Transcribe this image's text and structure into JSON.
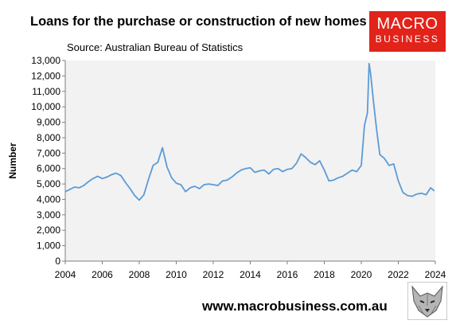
{
  "header": {
    "title": "Loans for the purchase or construction of new homes",
    "source": "Source: Australian Bureau of Statistics"
  },
  "logo": {
    "line1": "MACRO",
    "line2": "BUSINESS",
    "color": "#e2231a",
    "icon": "macrobusiness-logo"
  },
  "footer": {
    "url": "www.macrobusiness.com.au",
    "icon": "wolf-mascot-icon"
  },
  "chart_data": {
    "type": "line",
    "title": "Loans for the purchase or construction of new homes",
    "xlabel": "",
    "ylabel": "Number",
    "xlim": [
      2004,
      2024
    ],
    "ylim": [
      0,
      13000
    ],
    "x_ticks": [
      "2004",
      "2006",
      "2008",
      "2010",
      "2012",
      "2014",
      "2016",
      "2018",
      "2020",
      "2022",
      "2024"
    ],
    "y_ticks": [
      "0",
      "1,000",
      "2,000",
      "3,000",
      "4,000",
      "5,000",
      "6,000",
      "7,000",
      "8,000",
      "9,000",
      "10,000",
      "11,000",
      "12,000",
      "13,000"
    ],
    "grid": false,
    "line_color": "#5b9bd5",
    "plot_background": "#f2f2f2",
    "series": [
      {
        "x": [
          2004.0,
          2004.25,
          2004.5,
          2004.75,
          2005.0,
          2005.25,
          2005.5,
          2005.75,
          2006.0,
          2006.25,
          2006.5,
          2006.75,
          2007.0,
          2007.25,
          2007.5,
          2007.75,
          2008.0,
          2008.25,
          2008.5,
          2008.75,
          2009.0,
          2009.25,
          2009.5,
          2009.75,
          2010.0,
          2010.25,
          2010.5,
          2010.75,
          2011.0,
          2011.25,
          2011.5,
          2011.75,
          2012.0,
          2012.25,
          2012.5,
          2012.75,
          2013.0,
          2013.25,
          2013.5,
          2013.75,
          2014.0,
          2014.25,
          2014.5,
          2014.75,
          2015.0,
          2015.25,
          2015.5,
          2015.75,
          2016.0,
          2016.25,
          2016.5,
          2016.75,
          2017.0,
          2017.25,
          2017.5,
          2017.75,
          2018.0,
          2018.25,
          2018.5,
          2018.75,
          2019.0,
          2019.25,
          2019.5,
          2019.75,
          2020.0,
          2020.17,
          2020.33,
          2020.42,
          2020.5,
          2020.67,
          2020.83,
          2021.0,
          2021.25,
          2021.5,
          2021.75,
          2022.0,
          2022.25,
          2022.5,
          2022.75,
          2023.0,
          2023.25,
          2023.5,
          2023.75,
          2023.95
        ],
        "values": [
          4500,
          4650,
          4800,
          4750,
          4900,
          5150,
          5350,
          5500,
          5350,
          5450,
          5600,
          5700,
          5550,
          5100,
          4700,
          4250,
          3950,
          4300,
          5300,
          6200,
          6400,
          7350,
          6100,
          5400,
          5050,
          4950,
          4500,
          4750,
          4850,
          4700,
          4950,
          5000,
          4950,
          4900,
          5200,
          5250,
          5450,
          5700,
          5900,
          6000,
          6050,
          5750,
          5850,
          5900,
          5650,
          5950,
          6000,
          5800,
          5950,
          6000,
          6350,
          6950,
          6700,
          6400,
          6250,
          6500,
          5900,
          5200,
          5250,
          5400,
          5500,
          5700,
          5900,
          5800,
          6200,
          8800,
          9600,
          12800,
          12200,
          10200,
          8500,
          6900,
          6650,
          6200,
          6300,
          5200,
          4450,
          4250,
          4200,
          4350,
          4400,
          4300,
          4750,
          4550
        ]
      }
    ]
  }
}
